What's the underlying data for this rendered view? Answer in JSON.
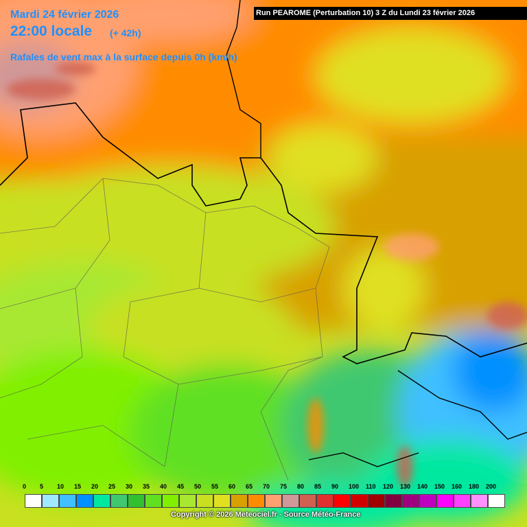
{
  "header": {
    "date": "Mardi 24 février 2026",
    "time": "22:00 locale",
    "lead": "(+ 42h)",
    "parameter": "Rafales de vent max à la surface depuis 0h (km/h)",
    "run": "Run PEAROME (Perturbation 10) 3 Z du Lundi 23 février 2026"
  },
  "legend": [
    {
      "label": "0",
      "color": "#ffffff"
    },
    {
      "label": "5",
      "color": "#a0e8ff"
    },
    {
      "label": "10",
      "color": "#40c0ff"
    },
    {
      "label": "15",
      "color": "#0090ff"
    },
    {
      "label": "20",
      "color": "#00e8a0"
    },
    {
      "label": "25",
      "color": "#40c870"
    },
    {
      "label": "30",
      "color": "#30c030"
    },
    {
      "label": "35",
      "color": "#60e020"
    },
    {
      "label": "40",
      "color": "#80f000"
    },
    {
      "label": "45",
      "color": "#a8e830"
    },
    {
      "label": "50",
      "color": "#c8e020"
    },
    {
      "label": "55",
      "color": "#e0e020"
    },
    {
      "label": "60",
      "color": "#d8a000"
    },
    {
      "label": "65",
      "color": "#ff8c00"
    },
    {
      "label": "70",
      "color": "#ffa070"
    },
    {
      "label": "75",
      "color": "#d09898"
    },
    {
      "label": "80",
      "color": "#d06050"
    },
    {
      "label": "85",
      "color": "#e03030"
    },
    {
      "label": "90",
      "color": "#ff0000"
    },
    {
      "label": "100",
      "color": "#d00000"
    },
    {
      "label": "110",
      "color": "#a00000"
    },
    {
      "label": "120",
      "color": "#800040"
    },
    {
      "label": "130",
      "color": "#a00080"
    },
    {
      "label": "140",
      "color": "#c000c0"
    },
    {
      "label": "150",
      "color": "#ff00ff"
    },
    {
      "label": "160",
      "color": "#ff40ff"
    },
    {
      "label": "180",
      "color": "#ff90ff"
    },
    {
      "label": "200",
      "color": "#ffffff"
    }
  ],
  "footer": {
    "copyright": "Copyright © 2026 Meteociel.fr - Source Météo-France"
  }
}
